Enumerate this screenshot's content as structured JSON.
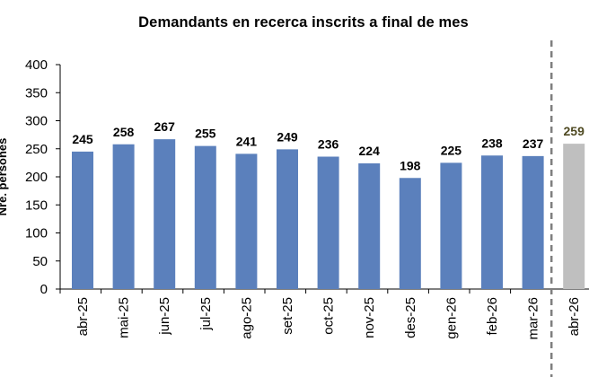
{
  "chart_data": {
    "type": "bar",
    "title": "Demandants en recerca inscrits  a final de mes",
    "xlabel": "",
    "ylabel": "Nre. persones",
    "ylim": [
      0,
      400
    ],
    "yticks": [
      0,
      50,
      100,
      150,
      200,
      250,
      300,
      350,
      400
    ],
    "categories": [
      "abr-25",
      "mai-25",
      "jun-25",
      "jul-25",
      "ago-25",
      "set-25",
      "oct-25",
      "nov-25",
      "des-25",
      "gen-26",
      "feb-26",
      "mar-26",
      "abr-26"
    ],
    "values": [
      245,
      258,
      267,
      255,
      241,
      249,
      236,
      224,
      198,
      225,
      238,
      237,
      259
    ],
    "highlight_index": 12,
    "grid": false,
    "legend": "none",
    "separator_before_last": true,
    "colors": {
      "bar": "#5b80bc",
      "highlight_bar": "#bfbfbf",
      "label": "#000000",
      "highlight_label": "#4f4a22",
      "separator": "#7f7f7f"
    }
  }
}
